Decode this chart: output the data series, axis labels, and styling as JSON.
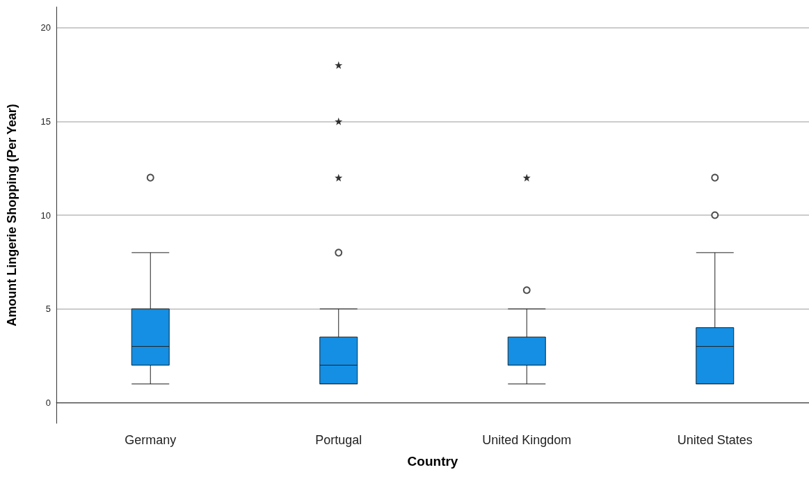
{
  "chart_data": {
    "type": "box",
    "xlabel": "Country",
    "ylabel": "Amount Lingerie Shopping (Per Year)",
    "categories": [
      "Germany",
      "Portugal",
      "United Kingdom",
      "United States"
    ],
    "series": [
      {
        "color": "#148fe4",
        "boxes": [
          {
            "low": 1,
            "q1": 2,
            "median": 3,
            "q3": 5,
            "high": 8,
            "outliers": [
              12
            ]
          },
          {
            "low": 1,
            "q1": 1,
            "median": 2,
            "q3": 3.5,
            "high": 5,
            "outliers": [
              8
            ]
          },
          {
            "low": 1,
            "q1": 2,
            "median": 2,
            "q3": 3.5,
            "high": 5,
            "outliers": [
              6
            ]
          },
          {
            "low": 1,
            "q1": 1,
            "median": 3,
            "q3": 4,
            "high": 8,
            "outliers": [
              10,
              12
            ]
          }
        ]
      },
      {
        "type": "scatter",
        "color": "#000000",
        "marker": "star",
        "x": [
          "Portugal",
          "Portugal",
          "Portugal",
          "United Kingdom"
        ],
        "values": [
          12,
          15,
          18,
          12
        ]
      }
    ],
    "ylim": [
      -1.1,
      21.1
    ],
    "yticks": [
      0,
      5,
      10,
      15,
      20
    ],
    "grid": "y"
  }
}
